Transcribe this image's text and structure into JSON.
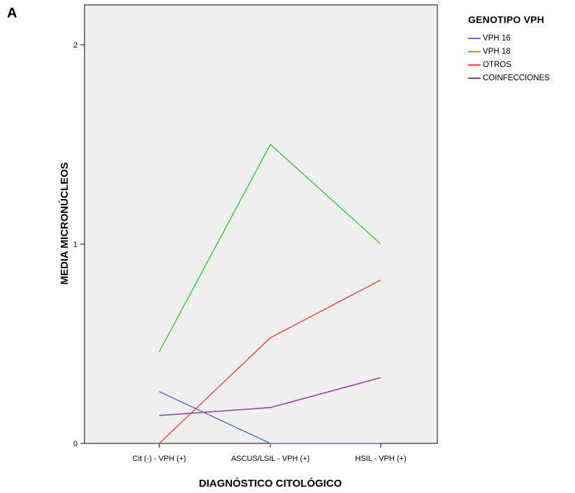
{
  "panel_label": "A",
  "legend": {
    "title": "GENOTIPO VPH",
    "items": [
      {
        "label": "VPH 16",
        "color": "#5a6fc4"
      },
      {
        "label": "VPH 18",
        "color": "#3fcf3f"
      },
      {
        "label": "OTROS",
        "color": "#f04a4a"
      },
      {
        "label": "COINFECCIONES",
        "color": "#8e3c9a"
      }
    ]
  },
  "chart_data": {
    "type": "line",
    "categories": [
      "Cit (-) - VPH (+)",
      "ASCUS/LSIL - VPH (+)",
      "HSIL - VPH (+)"
    ],
    "xlabel": "DIAGNÓSTICO CITOLÓGICO",
    "ylabel": "MEDIA MICRONÚCLEOS",
    "ylim": [
      0,
      2.2
    ],
    "yticks": [
      0,
      1,
      2
    ],
    "ytick_labels": [
      "0",
      "1",
      "2"
    ],
    "grid": false,
    "legend_position": "right",
    "background": "#efefef",
    "series": [
      {
        "name": "VPH 16",
        "values": [
          0.26,
          0.0,
          0.0
        ]
      },
      {
        "name": "VPH 18",
        "values": [
          0.46,
          1.5,
          1.0
        ]
      },
      {
        "name": "OTROS",
        "values": [
          0.0,
          0.53,
          0.82
        ]
      },
      {
        "name": "COINFECCIONES",
        "values": [
          0.14,
          0.18,
          0.33
        ]
      }
    ]
  }
}
